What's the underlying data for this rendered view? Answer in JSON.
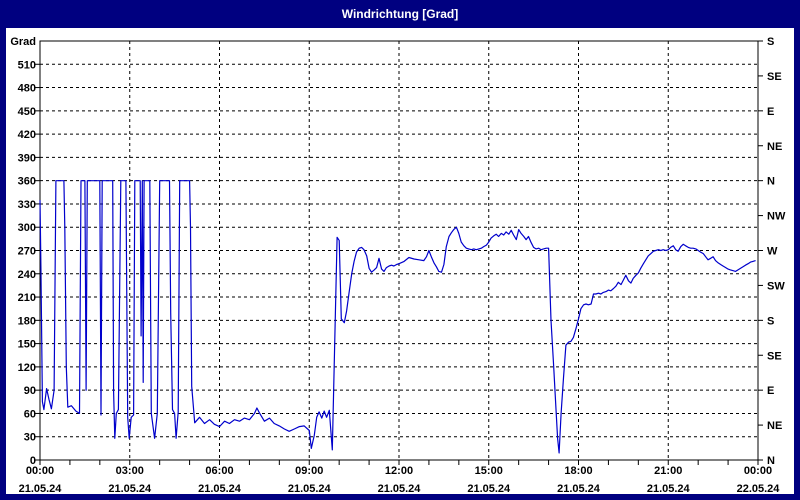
{
  "window": {
    "title": "Windrichtung [Grad]"
  },
  "colors": {
    "frame": "#000080",
    "titlebar_bg": "#000080",
    "titlebar_text": "#ffffff",
    "plot_bg": "#ffffff",
    "axis": "#000000",
    "grid": "#000000",
    "line": "#0000cc"
  },
  "chart_data": {
    "type": "line",
    "title": "Windrichtung [Grad]",
    "grid": "dashed",
    "ylim": [
      0,
      540
    ],
    "xlim_hours": [
      0,
      24
    ],
    "y_axis_left": {
      "title": "Grad",
      "tick_interval": 30,
      "labels": [
        "0",
        "30",
        "60",
        "90",
        "120",
        "150",
        "180",
        "210",
        "240",
        "270",
        "300",
        "330",
        "360",
        "390",
        "420",
        "450",
        "480",
        "510"
      ],
      "top_label": "Grad"
    },
    "y_axis_right": {
      "tick_interval": 45,
      "labels_bottom_to_top": [
        "N",
        "NE",
        "E",
        "SE",
        "S",
        "SW",
        "W",
        "NW",
        "N",
        "NE",
        "E",
        "SE",
        "S"
      ]
    },
    "x_axis": {
      "label_interval_hours": 3,
      "minor_tick_hours": 1,
      "labels": [
        {
          "time": "00:00",
          "date": "21.05.24"
        },
        {
          "time": "03:00",
          "date": "21.05.24"
        },
        {
          "time": "06:00",
          "date": "21.05.24"
        },
        {
          "time": "09:00",
          "date": "21.05.24"
        },
        {
          "time": "12:00",
          "date": "21.05.24"
        },
        {
          "time": "15:00",
          "date": "21.05.24"
        },
        {
          "time": "18:00",
          "date": "21.05.24"
        },
        {
          "time": "21:00",
          "date": "21.05.24"
        },
        {
          "time": "00:00",
          "date": "22.05.24"
        }
      ]
    },
    "series": [
      {
        "name": "Windrichtung",
        "unit": "Grad",
        "points": [
          [
            0.0,
            335
          ],
          [
            0.03,
            250
          ],
          [
            0.08,
            75
          ],
          [
            0.13,
            65
          ],
          [
            0.22,
            92
          ],
          [
            0.3,
            78
          ],
          [
            0.38,
            66
          ],
          [
            0.47,
            90
          ],
          [
            0.53,
            360
          ],
          [
            0.8,
            360
          ],
          [
            0.83,
            300
          ],
          [
            0.88,
            120
          ],
          [
            0.93,
            68
          ],
          [
            1.05,
            70
          ],
          [
            1.2,
            63
          ],
          [
            1.32,
            60
          ],
          [
            1.37,
            360
          ],
          [
            1.5,
            360
          ],
          [
            1.54,
            90
          ],
          [
            1.58,
            360
          ],
          [
            2.0,
            360
          ],
          [
            2.04,
            58
          ],
          [
            2.08,
            360
          ],
          [
            2.43,
            360
          ],
          [
            2.46,
            88
          ],
          [
            2.5,
            28
          ],
          [
            2.55,
            60
          ],
          [
            2.62,
            65
          ],
          [
            2.7,
            360
          ],
          [
            2.87,
            360
          ],
          [
            2.93,
            55
          ],
          [
            2.98,
            28
          ],
          [
            3.05,
            55
          ],
          [
            3.13,
            58
          ],
          [
            3.17,
            360
          ],
          [
            3.35,
            360
          ],
          [
            3.38,
            160
          ],
          [
            3.42,
            360
          ],
          [
            3.45,
            100
          ],
          [
            3.48,
            360
          ],
          [
            3.67,
            360
          ],
          [
            3.72,
            60
          ],
          [
            3.83,
            28
          ],
          [
            3.92,
            60
          ],
          [
            4.0,
            360
          ],
          [
            4.33,
            360
          ],
          [
            4.37,
            190
          ],
          [
            4.43,
            65
          ],
          [
            4.5,
            60
          ],
          [
            4.55,
            28
          ],
          [
            4.62,
            62
          ],
          [
            4.67,
            360
          ],
          [
            5.0,
            360
          ],
          [
            5.03,
            300
          ],
          [
            5.07,
            95
          ],
          [
            5.17,
            48
          ],
          [
            5.33,
            55
          ],
          [
            5.5,
            47
          ],
          [
            5.67,
            52
          ],
          [
            5.83,
            46
          ],
          [
            6.0,
            43
          ],
          [
            6.17,
            50
          ],
          [
            6.33,
            47
          ],
          [
            6.5,
            52
          ],
          [
            6.67,
            50
          ],
          [
            6.83,
            54
          ],
          [
            7.0,
            52
          ],
          [
            7.17,
            60
          ],
          [
            7.25,
            67
          ],
          [
            7.33,
            61
          ],
          [
            7.5,
            50
          ],
          [
            7.67,
            54
          ],
          [
            7.83,
            47
          ],
          [
            8.0,
            44
          ],
          [
            8.17,
            40
          ],
          [
            8.33,
            37
          ],
          [
            8.5,
            40
          ],
          [
            8.67,
            43
          ],
          [
            8.83,
            44
          ],
          [
            9.0,
            38
          ],
          [
            9.07,
            15
          ],
          [
            9.17,
            32
          ],
          [
            9.25,
            55
          ],
          [
            9.33,
            62
          ],
          [
            9.42,
            54
          ],
          [
            9.5,
            63
          ],
          [
            9.58,
            55
          ],
          [
            9.67,
            64
          ],
          [
            9.77,
            13
          ],
          [
            9.93,
            287
          ],
          [
            10.0,
            283
          ],
          [
            10.07,
            182
          ],
          [
            10.17,
            177
          ],
          [
            10.25,
            192
          ],
          [
            10.33,
            215
          ],
          [
            10.42,
            240
          ],
          [
            10.5,
            256
          ],
          [
            10.58,
            268
          ],
          [
            10.67,
            273
          ],
          [
            10.75,
            274
          ],
          [
            10.83,
            271
          ],
          [
            10.92,
            263
          ],
          [
            11.0,
            247
          ],
          [
            11.08,
            242
          ],
          [
            11.17,
            245
          ],
          [
            11.25,
            248
          ],
          [
            11.33,
            260
          ],
          [
            11.42,
            246
          ],
          [
            11.5,
            243
          ],
          [
            11.58,
            248
          ],
          [
            11.67,
            250
          ],
          [
            11.75,
            251
          ],
          [
            11.83,
            250
          ],
          [
            11.92,
            252
          ],
          [
            12.0,
            253
          ],
          [
            12.17,
            256
          ],
          [
            12.33,
            261
          ],
          [
            12.5,
            259
          ],
          [
            12.67,
            258
          ],
          [
            12.83,
            257
          ],
          [
            12.92,
            262
          ],
          [
            13.0,
            270
          ],
          [
            13.08,
            262
          ],
          [
            13.17,
            254
          ],
          [
            13.25,
            249
          ],
          [
            13.33,
            243
          ],
          [
            13.42,
            242
          ],
          [
            13.5,
            252
          ],
          [
            13.58,
            275
          ],
          [
            13.67,
            288
          ],
          [
            13.75,
            293
          ],
          [
            13.83,
            297
          ],
          [
            13.92,
            300
          ],
          [
            14.0,
            292
          ],
          [
            14.08,
            281
          ],
          [
            14.17,
            276
          ],
          [
            14.25,
            273
          ],
          [
            14.33,
            272
          ],
          [
            14.42,
            271
          ],
          [
            14.5,
            272
          ],
          [
            14.58,
            271
          ],
          [
            14.67,
            272
          ],
          [
            14.75,
            273
          ],
          [
            14.83,
            275
          ],
          [
            14.92,
            277
          ],
          [
            15.0,
            281
          ],
          [
            15.08,
            286
          ],
          [
            15.17,
            289
          ],
          [
            15.25,
            291
          ],
          [
            15.33,
            288
          ],
          [
            15.42,
            292
          ],
          [
            15.5,
            290
          ],
          [
            15.58,
            294
          ],
          [
            15.67,
            291
          ],
          [
            15.75,
            296
          ],
          [
            15.83,
            290
          ],
          [
            15.92,
            284
          ],
          [
            16.0,
            297
          ],
          [
            16.08,
            292
          ],
          [
            16.17,
            288
          ],
          [
            16.25,
            284
          ],
          [
            16.33,
            288
          ],
          [
            16.42,
            280
          ],
          [
            16.5,
            274
          ],
          [
            16.58,
            272
          ],
          [
            16.67,
            273
          ],
          [
            16.75,
            271
          ],
          [
            16.83,
            272
          ],
          [
            16.92,
            273
          ],
          [
            17.0,
            273
          ],
          [
            17.08,
            180
          ],
          [
            17.17,
            120
          ],
          [
            17.25,
            63
          ],
          [
            17.3,
            28
          ],
          [
            17.35,
            9
          ],
          [
            17.42,
            60
          ],
          [
            17.5,
            106
          ],
          [
            17.58,
            148
          ],
          [
            17.67,
            152
          ],
          [
            17.75,
            153
          ],
          [
            17.83,
            158
          ],
          [
            17.92,
            170
          ],
          [
            18.0,
            182
          ],
          [
            18.08,
            195
          ],
          [
            18.17,
            200
          ],
          [
            18.25,
            201
          ],
          [
            18.33,
            200
          ],
          [
            18.42,
            201
          ],
          [
            18.5,
            214
          ],
          [
            18.58,
            214
          ],
          [
            18.67,
            215
          ],
          [
            18.75,
            214
          ],
          [
            18.83,
            216
          ],
          [
            18.92,
            217
          ],
          [
            19.0,
            219
          ],
          [
            19.08,
            218
          ],
          [
            19.17,
            221
          ],
          [
            19.25,
            224
          ],
          [
            19.33,
            229
          ],
          [
            19.42,
            226
          ],
          [
            19.5,
            232
          ],
          [
            19.58,
            238
          ],
          [
            19.67,
            231
          ],
          [
            19.75,
            228
          ],
          [
            19.83,
            234
          ],
          [
            19.92,
            238
          ],
          [
            20.0,
            241
          ],
          [
            20.08,
            247
          ],
          [
            20.17,
            253
          ],
          [
            20.25,
            258
          ],
          [
            20.33,
            263
          ],
          [
            20.42,
            266
          ],
          [
            20.5,
            269
          ],
          [
            20.58,
            270
          ],
          [
            20.67,
            271
          ],
          [
            20.75,
            270
          ],
          [
            20.83,
            271
          ],
          [
            20.92,
            270
          ],
          [
            21.0,
            271
          ],
          [
            21.08,
            274
          ],
          [
            21.17,
            276
          ],
          [
            21.25,
            271
          ],
          [
            21.33,
            269
          ],
          [
            21.42,
            275
          ],
          [
            21.5,
            278
          ],
          [
            21.58,
            276
          ],
          [
            21.67,
            274
          ],
          [
            21.75,
            273
          ],
          [
            21.83,
            273
          ],
          [
            21.92,
            272
          ],
          [
            22.0,
            270
          ],
          [
            22.08,
            268
          ],
          [
            22.17,
            266
          ],
          [
            22.25,
            262
          ],
          [
            22.33,
            258
          ],
          [
            22.42,
            260
          ],
          [
            22.5,
            262
          ],
          [
            22.58,
            257
          ],
          [
            22.67,
            254
          ],
          [
            22.75,
            252
          ],
          [
            22.83,
            250
          ],
          [
            22.92,
            248
          ],
          [
            23.0,
            246
          ],
          [
            23.08,
            245
          ],
          [
            23.17,
            244
          ],
          [
            23.25,
            243
          ],
          [
            23.33,
            245
          ],
          [
            23.42,
            247
          ],
          [
            23.5,
            249
          ],
          [
            23.58,
            251
          ],
          [
            23.67,
            253
          ],
          [
            23.75,
            255
          ],
          [
            23.83,
            256
          ],
          [
            23.92,
            257
          ]
        ]
      }
    ]
  }
}
